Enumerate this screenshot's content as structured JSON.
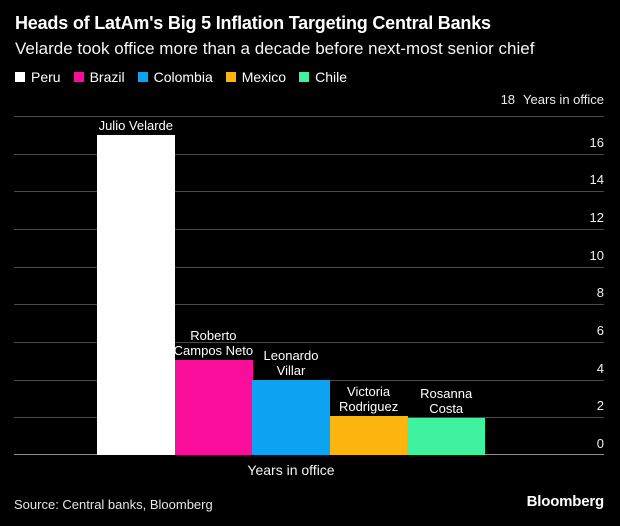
{
  "header": {
    "title": "Heads of LatAm's Big 5 Inflation Targeting Central Banks",
    "subtitle": "Velarde took office more than a decade before next-most senior chief"
  },
  "legend": {
    "items": [
      {
        "label": "Peru",
        "color": "#ffffff"
      },
      {
        "label": "Brazil",
        "color": "#fb0d9b"
      },
      {
        "label": "Colombia",
        "color": "#0ea3f1"
      },
      {
        "label": "Mexico",
        "color": "#fcb40e"
      },
      {
        "label": "Chile",
        "color": "#3ef2a0"
      }
    ]
  },
  "chart_data": {
    "type": "bar",
    "title": "Heads of LatAm's Big 5 Inflation Targeting Central Banks",
    "subtitle": "Velarde took office more than a decade before next-most senior chief",
    "categories": [
      "Julio Velarde",
      "Roberto Campos Neto",
      "Leonardo Villar",
      "Victoria Rodriguez",
      "Rosanna Costa"
    ],
    "series_countries": [
      "Peru",
      "Brazil",
      "Colombia",
      "Mexico",
      "Chile"
    ],
    "values": [
      17.0,
      5.05,
      4.0,
      2.05,
      1.95
    ],
    "colors": [
      "#ffffff",
      "#fb0d9b",
      "#0ea3f1",
      "#fcb40e",
      "#3ef2a0"
    ],
    "bar_label_lines": [
      [
        "Julio Velarde"
      ],
      [
        "Roberto",
        "Campos Neto"
      ],
      [
        "Leonardo",
        "Villar"
      ],
      [
        "Victoria",
        "Rodriguez"
      ],
      [
        "Rosanna",
        "Costa"
      ]
    ],
    "y_axis_top": {
      "tick": "18",
      "unit": "Years in office"
    },
    "xlabel": "Years in office",
    "ylim": [
      0,
      18
    ],
    "ytick_step": 2,
    "grid": "horizontal",
    "legend_position": "top"
  },
  "footer": {
    "source": "Source: Central banks, Bloomberg",
    "brand": "Bloomberg"
  },
  "colors": {
    "background": "#000000",
    "gridline": "#4a4a4a",
    "baseline": "#8f8f8f",
    "text": "#ffffff",
    "muted_text": "#e6e6e6"
  }
}
